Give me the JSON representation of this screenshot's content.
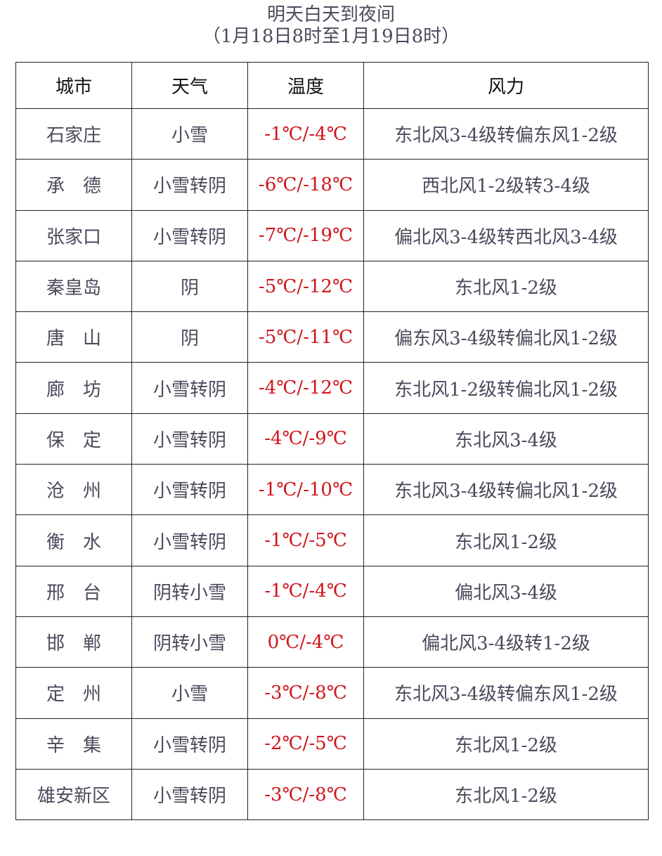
{
  "title": "明天白天到夜间",
  "subtitle": "（1月18日8时至1月19日8时）",
  "colors": {
    "text": "#4b4a5c",
    "temperature": "#d0141c",
    "border": "#222222"
  },
  "headers": [
    "城市",
    "天气",
    "温度",
    "风力"
  ],
  "rows": [
    [
      "石家庄",
      "小雪",
      "-1℃/-4℃",
      "东北风3-4级转偏东风1-2级"
    ],
    [
      "承　德",
      "小雪转阴",
      "-6℃/-18℃",
      "西北风1-2级转3-4级"
    ],
    [
      "张家口",
      "小雪转阴",
      "-7℃/-19℃",
      "偏北风3-4级转西北风3-4级"
    ],
    [
      "秦皇岛",
      "阴",
      "-5℃/-12℃",
      "东北风1-2级"
    ],
    [
      "唐　山",
      "阴",
      "-5℃/-11℃",
      "偏东风3-4级转偏北风1-2级"
    ],
    [
      "廊　坊",
      "小雪转阴",
      "-4℃/-12℃",
      "东北风1-2级转偏北风1-2级"
    ],
    [
      "保　定",
      "小雪转阴",
      "-4℃/-9℃",
      "东北风3-4级"
    ],
    [
      "沧　州",
      "小雪转阴",
      "-1℃/-10℃",
      "东北风3-4级转偏北风1-2级"
    ],
    [
      "衡　水",
      "小雪转阴",
      "-1℃/-5℃",
      "东北风1-2级"
    ],
    [
      "邢　台",
      "阴转小雪",
      "-1℃/-4℃",
      "偏北风3-4级"
    ],
    [
      "邯　郸",
      "阴转小雪",
      "0℃/-4℃",
      "偏北风3-4级转1-2级"
    ],
    [
      "定　州",
      "小雪",
      "-3℃/-8℃",
      "东北风3-4级转偏东风1-2级"
    ],
    [
      "辛　集",
      "小雪转阴",
      "-2℃/-5℃",
      "东北风1-2级"
    ],
    [
      "雄安新区",
      "小雪转阴",
      "-3℃/-8℃",
      "东北风1-2级"
    ]
  ]
}
